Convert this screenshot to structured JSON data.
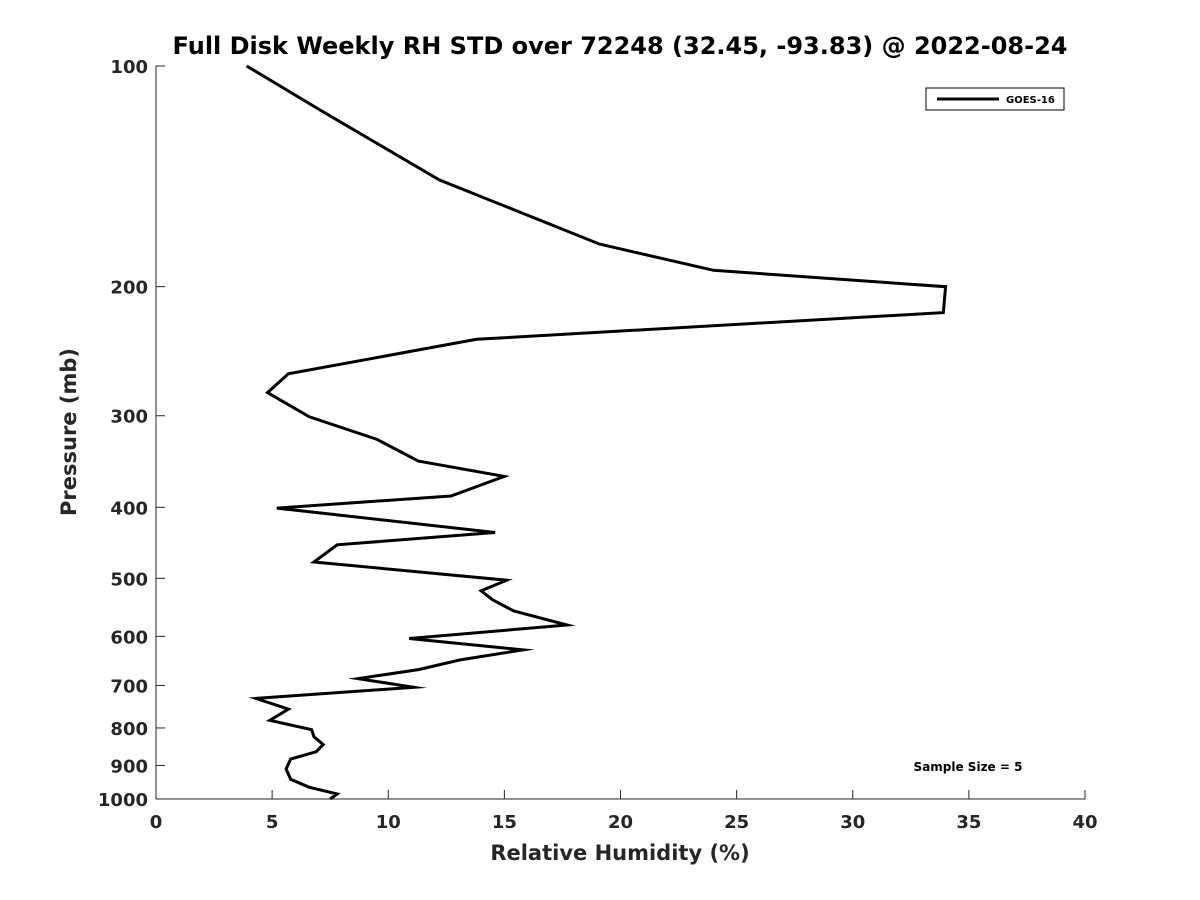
{
  "chart_data": {
    "type": "line",
    "title": "Full Disk Weekly RH STD over 72248 (32.45, -93.83) @ 2022-08-24",
    "xlabel": "Relative Humidity (%)",
    "ylabel": "Pressure (mb)",
    "xlim": [
      0,
      40
    ],
    "ylim": [
      100,
      1000
    ],
    "y_scale": "log",
    "y_inverted": true,
    "x_ticks": [
      "0",
      "5",
      "10",
      "15",
      "20",
      "25",
      "30",
      "35",
      "40"
    ],
    "y_ticks": [
      "100",
      "200",
      "300",
      "400",
      "500",
      "600",
      "700",
      "800",
      "900",
      "1000"
    ],
    "grid": false,
    "legend_position": "top-right",
    "annotation": "Sample Size = 5",
    "series": [
      {
        "name": "GOES-16",
        "color": "#000000",
        "x": [
          3.9,
          7.1,
          12.2,
          19.1,
          24.0,
          34.0,
          33.9,
          13.8,
          5.7,
          4.8,
          6.6,
          9.5,
          11.3,
          15.0,
          12.7,
          5.2,
          14.6,
          7.8,
          6.8,
          15.1,
          14.0,
          14.5,
          15.4,
          17.7,
          10.9,
          15.8,
          13.1,
          11.3,
          8.7,
          11.1,
          4.3,
          5.7,
          4.9,
          6.7,
          6.8,
          7.2,
          6.9,
          5.8,
          5.6,
          5.8,
          6.6,
          7.8,
          7.5
        ],
        "y": [
          100,
          115,
          143,
          175,
          190,
          200,
          217,
          236,
          263,
          279,
          301,
          323,
          346,
          363,
          386,
          401,
          433,
          450,
          475,
          503,
          520,
          535,
          554,
          579,
          604,
          626,
          646,
          666,
          685,
          704,
          729,
          754,
          781,
          804,
          822,
          843,
          862,
          882,
          910,
          940,
          964,
          984,
          1000
        ]
      }
    ]
  }
}
